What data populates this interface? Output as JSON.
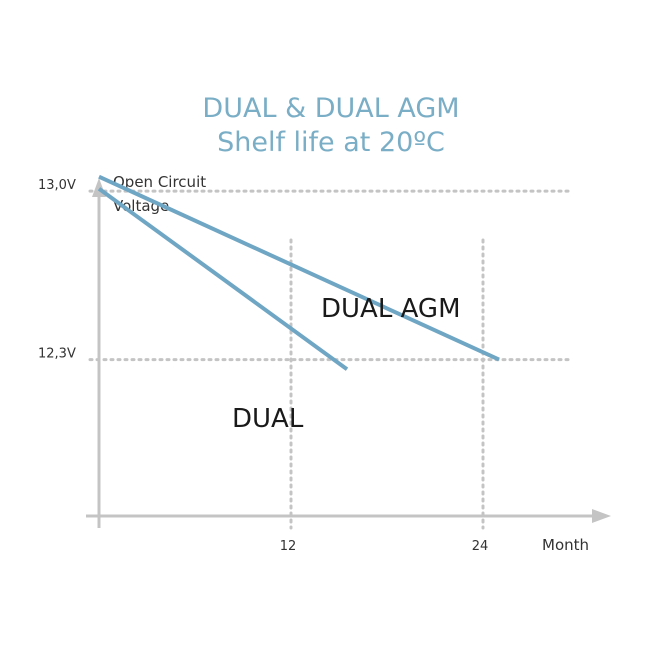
{
  "chart_data": {
    "type": "line",
    "title": [
      "DUAL & DUAL AGM",
      "Shelf life at 20ºC"
    ],
    "ylabel": [
      "Open Circuit",
      "Voltage"
    ],
    "xlabel": "Month",
    "x_ticks": [
      {
        "value": 12,
        "label": "12"
      },
      {
        "value": 24,
        "label": "24"
      }
    ],
    "y_ticks": [
      {
        "value": 13.0,
        "label": "13,0V"
      },
      {
        "value": 12.3,
        "label": "12,3V"
      }
    ],
    "grid": "dotted",
    "xlim": [
      0,
      32
    ],
    "ylim": [
      11.65,
      13.3
    ],
    "series": [
      {
        "name": "DUAL AGM",
        "color": "#6fa6c4",
        "points": [
          [
            0,
            13.06
          ],
          [
            25,
            12.3
          ]
        ]
      },
      {
        "name": "DUAL",
        "color": "#6fa6c4",
        "points": [
          [
            0,
            13.01
          ],
          [
            15.5,
            12.26
          ]
        ]
      }
    ]
  }
}
